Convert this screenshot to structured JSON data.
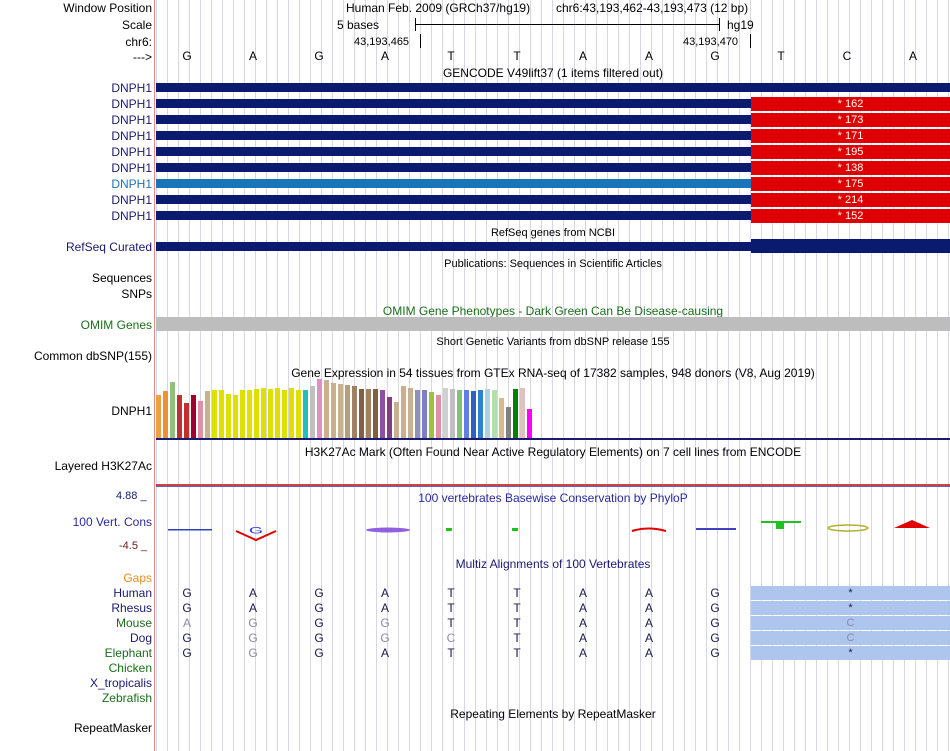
{
  "header": {
    "window_position_label": "Window Position",
    "scale_label": "Scale",
    "chrom_label": "chr6:",
    "strand_label": "--->",
    "assembly_text": "Human Feb. 2009 (GRCh37/hg19)",
    "position_text": "chr6:43,193,462-43,193,473 (12 bp)",
    "scale_text": "5 bases",
    "db_text": "hg19",
    "tick_left": "43,193,465",
    "tick_right": "43,193,470"
  },
  "bases": [
    "G",
    "A",
    "G",
    "A",
    "T",
    "T",
    "A",
    "A",
    "G",
    "T",
    "C",
    "A"
  ],
  "gencode": {
    "title": "GENCODE V49lift37 (1 items filtered out)",
    "rows": [
      {
        "name": "DNPH1",
        "score": "",
        "color": "#0a1a6e"
      },
      {
        "name": "DNPH1",
        "score": "* 162",
        "color": "#0a1a6e"
      },
      {
        "name": "DNPH1",
        "score": "* 173",
        "color": "#0a1a6e"
      },
      {
        "name": "DNPH1",
        "score": "* 171",
        "color": "#0a1a6e"
      },
      {
        "name": "DNPH1",
        "score": "* 195",
        "color": "#0a1a6e"
      },
      {
        "name": "DNPH1",
        "score": "* 138",
        "color": "#0a1a6e"
      },
      {
        "name": "DNPH1",
        "score": "* 175",
        "color": "#1a74b8"
      },
      {
        "name": "DNPH1",
        "score": "* 214",
        "color": "#0a1a6e"
      },
      {
        "name": "DNPH1",
        "score": "* 152",
        "color": "#0a1a6e"
      }
    ]
  },
  "refseq": {
    "title": "RefSeq genes from NCBI",
    "label": "RefSeq Curated"
  },
  "publications": {
    "title": "Publications: Sequences in Scientific Articles"
  },
  "sequences_label": "Sequences",
  "snps_label": "SNPs",
  "omim": {
    "title": "OMIM Gene Phenotypes - Dark Green Can Be Disease-causing",
    "label": "OMIM Genes"
  },
  "dbsnp": {
    "title": "Short Genetic Variants from dbSNP release 155",
    "label": "Common dbSNP(155)"
  },
  "gtex": {
    "title": "Gene Expression in 54 tissues from GTEx RNA-seq of 17382 samples, 948 donors (V8, Aug 2019)",
    "label": "DNPH1",
    "values": [
      0.72,
      0.78,
      0.93,
      0.72,
      0.58,
      0.72,
      0.62,
      0.78,
      0.8,
      0.8,
      0.74,
      0.72,
      0.8,
      0.8,
      0.82,
      0.84,
      0.82,
      0.84,
      0.8,
      0.84,
      0.8,
      0.8,
      0.86,
      0.98,
      0.96,
      0.92,
      0.9,
      0.88,
      0.86,
      0.82,
      0.82,
      0.82,
      0.8,
      0.68,
      0.6,
      0.86,
      0.84,
      0.8,
      0.8,
      0.76,
      0.72,
      0.84,
      0.82,
      0.8,
      0.8,
      0.78,
      0.8,
      0.82,
      0.8,
      0.66,
      0.52,
      0.82,
      0.84,
      0.48
    ],
    "colors": [
      "#f0a040",
      "#f09030",
      "#90c080",
      "#c03030",
      "#c03030",
      "#a00030",
      "#e090a0",
      "#c8b090",
      "#e0e000",
      "#e0e000",
      "#e0e000",
      "#e0e000",
      "#e0e000",
      "#e0e000",
      "#e0e000",
      "#e0e000",
      "#e0e000",
      "#e0e000",
      "#e0e000",
      "#e0e000",
      "#e0e000",
      "#20c0c0",
      "#c0c0c0",
      "#e090c0",
      "#c8b090",
      "#c8b090",
      "#c8b090",
      "#b0a080",
      "#a08060",
      "#806040",
      "#a08060",
      "#806040",
      "#9050a0",
      "#804080",
      "#c8b090",
      "#c8b090",
      "#c8b090",
      "#9090c0",
      "#8080c0",
      "#a0c040",
      "#e090a0",
      "#d0d0d0",
      "#c0c0c0",
      "#80c080",
      "#6080e0",
      "#3060c0",
      "#3080d0",
      "#b0d0e0",
      "#b0e0b0",
      "#d8b890",
      "#808080",
      "#008000",
      "#e0c0c0",
      "#ff00ff"
    ]
  },
  "h3k27ac": {
    "title": "H3K27Ac Mark (Often Found Near Active Regulatory Elements) on 7 cell lines from ENCODE",
    "label": "Layered H3K27Ac"
  },
  "phylop": {
    "title": "100 vertebrates Basewise Conservation by PhyloP",
    "label": "100 Vert. Cons",
    "max": "4.88 _",
    "min": "-4.5 _"
  },
  "multiz": {
    "title": "Multiz Alignments of 100 Vertebrates",
    "gaps_label": "Gaps",
    "species": [
      {
        "name": "Human",
        "color": "#1a1a6e",
        "bases": [
          "G",
          "A",
          "G",
          "A",
          "T",
          "T",
          "A",
          "A",
          "G"
        ],
        "gray": [],
        "box": "*"
      },
      {
        "name": "Rhesus",
        "color": "#1a1a6e",
        "bases": [
          "G",
          "A",
          "G",
          "A",
          "T",
          "T",
          "A",
          "A",
          "G"
        ],
        "gray": [],
        "box": "*"
      },
      {
        "name": "Mouse",
        "color": "#1a6e1a",
        "bases": [
          "A",
          "G",
          "G",
          "G",
          "T",
          "T",
          "A",
          "A",
          "G"
        ],
        "gray": [
          0,
          1,
          3
        ],
        "box": "C"
      },
      {
        "name": "Dog",
        "color": "#1a1a6e",
        "bases": [
          "G",
          "G",
          "G",
          "G",
          "C",
          "T",
          "A",
          "A",
          "G"
        ],
        "gray": [
          1,
          3,
          4
        ],
        "box": "C"
      },
      {
        "name": "Elephant",
        "color": "#1a6e1a",
        "bases": [
          "G",
          "G",
          "G",
          "A",
          "T",
          "T",
          "A",
          "A",
          "G"
        ],
        "gray": [
          1
        ],
        "box": "*"
      },
      {
        "name": "Chicken",
        "color": "#1a6e1a",
        "bases": [],
        "gray": [],
        "box": ""
      },
      {
        "name": "X_tropicalis",
        "color": "#1a1a6e",
        "bases": [],
        "gray": [],
        "box": ""
      },
      {
        "name": "Zebrafish",
        "color": "#1a6e1a",
        "bases": [],
        "gray": [],
        "box": ""
      }
    ]
  },
  "repeatmasker": {
    "title": "Repeating Elements by RepeatMasker",
    "label": "RepeatMasker"
  }
}
